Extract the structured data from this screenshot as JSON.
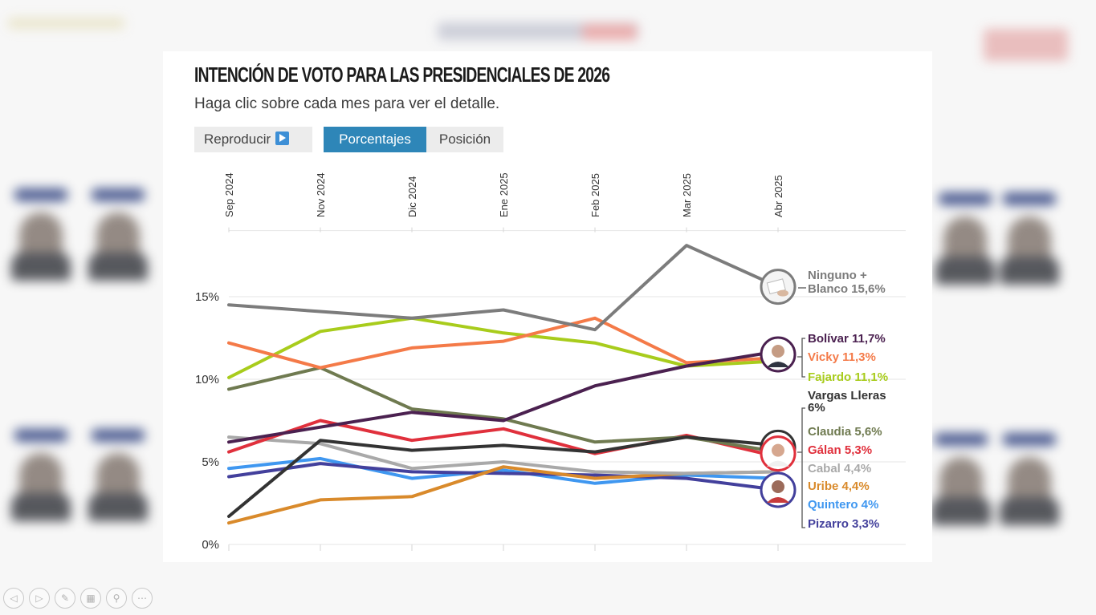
{
  "chart_data": {
    "type": "line",
    "title": "INTENCIÓN DE VOTO PARA LAS PRESIDENCIALES DE 2026",
    "subtitle": "Haga clic sobre cada mes para ver el detalle.",
    "controls": {
      "play_label": "Reproducir",
      "tab_percent": "Porcentajes",
      "tab_position": "Posición",
      "active_tab": "Porcentajes"
    },
    "x": [
      "Sep 2024",
      "Nov 2024",
      "Dic 2024",
      "Ene 2025",
      "Feb 2025",
      "Mar 2025",
      "Abr 2025"
    ],
    "y_ticks": [
      "0%",
      "5%",
      "10%",
      "15%"
    ],
    "ylim": [
      0,
      19
    ],
    "grid": true,
    "series": [
      {
        "name": "Ninguno + Blanco",
        "label": "Ninguno + Blanco 15,6%",
        "color": "#7c7c7c",
        "values": [
          14.5,
          14.1,
          13.7,
          14.2,
          13.0,
          18.1,
          15.6
        ]
      },
      {
        "name": "Bolívar",
        "label": "Bolívar 11,7%",
        "color": "#4b2150",
        "values": [
          6.2,
          7.1,
          8.0,
          7.5,
          9.6,
          10.8,
          11.7
        ]
      },
      {
        "name": "Vicky",
        "label": "Vicky 11,3%",
        "color": "#f47a48",
        "values": [
          12.2,
          10.7,
          11.9,
          12.3,
          13.7,
          11.0,
          11.3
        ]
      },
      {
        "name": "Fajardo",
        "label": "Fajardo 11,1%",
        "color": "#a8cc1c",
        "values": [
          10.1,
          12.9,
          13.7,
          12.8,
          12.2,
          10.8,
          11.1
        ]
      },
      {
        "name": "Vargas Lleras",
        "label": "Vargas Lleras 6%",
        "color": "#333333",
        "values": [
          1.7,
          6.3,
          5.7,
          6.0,
          5.6,
          6.5,
          6.0
        ]
      },
      {
        "name": "Claudia",
        "label": "Claudia 5,6%",
        "color": "#6f7a50",
        "values": [
          9.4,
          10.7,
          8.2,
          7.6,
          6.2,
          6.5,
          5.6
        ]
      },
      {
        "name": "Gálan",
        "label": "Gálan 5,3%",
        "color": "#e0303c",
        "values": [
          5.6,
          7.5,
          6.3,
          7.0,
          5.5,
          6.6,
          5.3
        ]
      },
      {
        "name": "Cabal",
        "label": "Cabal 4,4%",
        "color": "#a9a9a9",
        "values": [
          6.5,
          6.1,
          4.6,
          5.0,
          4.4,
          4.3,
          4.4
        ]
      },
      {
        "name": "Uribe",
        "label": "Uribe 4,4%",
        "color": "#d98a2b",
        "values": [
          1.3,
          2.7,
          2.9,
          4.7,
          4.0,
          4.3,
          4.4
        ]
      },
      {
        "name": "Quintero",
        "label": "Quintero 4%",
        "color": "#3f97f0",
        "values": [
          4.6,
          5.2,
          4.0,
          4.5,
          3.7,
          4.2,
          4.0
        ]
      },
      {
        "name": "Pizarro",
        "label": "Pizarro 3,3%",
        "color": "#43409c",
        "values": [
          4.1,
          4.9,
          4.4,
          4.3,
          4.2,
          4.0,
          3.3
        ]
      }
    ]
  },
  "toolbar": {
    "icons": [
      "arrow-left-icon",
      "arrow-right-icon",
      "pen-icon",
      "slides-icon",
      "zoom-icon",
      "more-icon"
    ]
  }
}
